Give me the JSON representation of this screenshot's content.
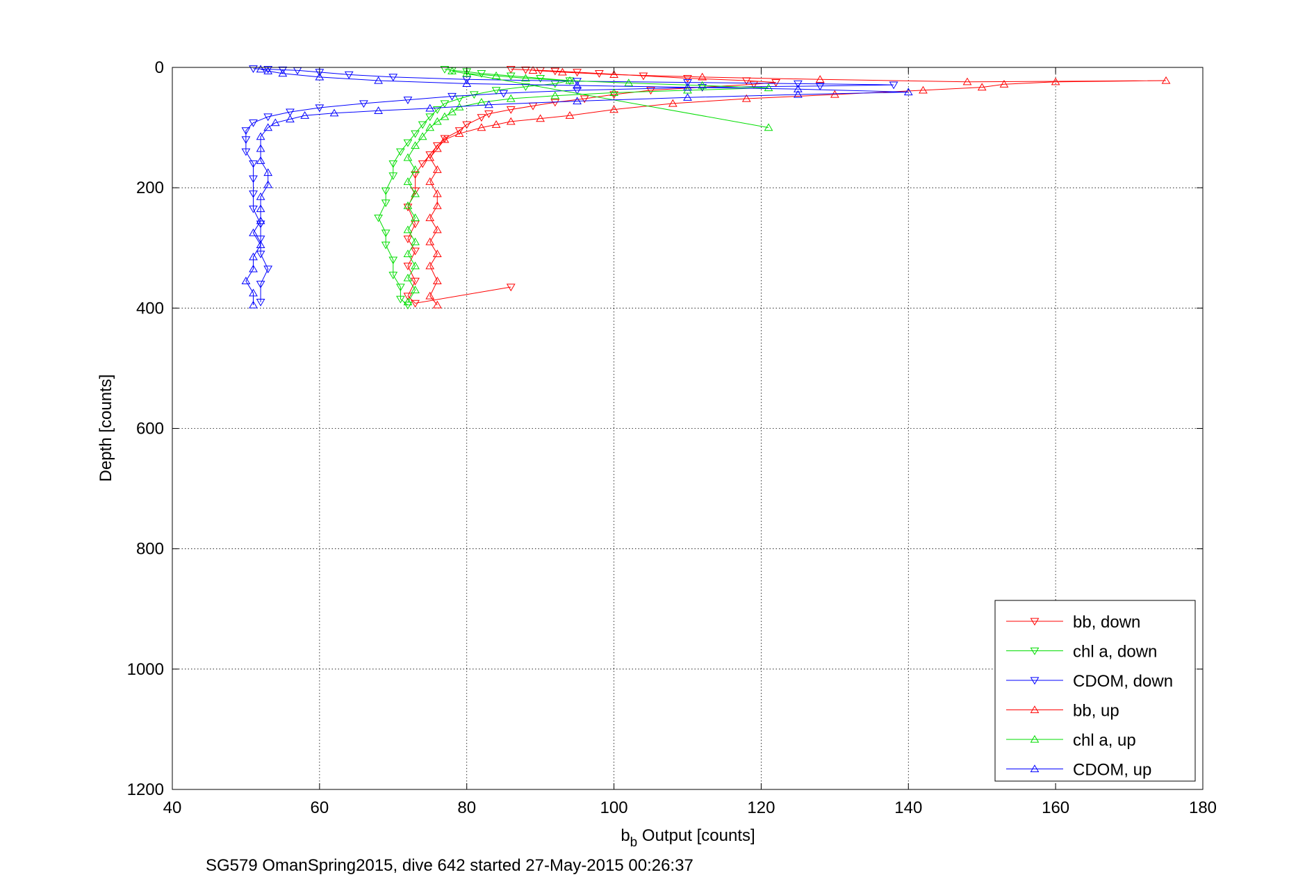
{
  "chart_data": {
    "type": "scatter",
    "title": "",
    "xlabel_main": "b",
    "xlabel_sub": "b",
    "xlabel_rest": " Output [counts]",
    "ylabel": "Depth [counts]",
    "caption": "SG579 OmanSpring2015, dive 642 started 27-May-2015 00:26:37",
    "xlim": [
      40,
      180
    ],
    "ylim": [
      0,
      1200
    ],
    "y_reversed": true,
    "xticks": [
      40,
      60,
      80,
      100,
      120,
      140,
      160,
      180
    ],
    "yticks": [
      0,
      200,
      400,
      600,
      800,
      1000,
      1200
    ],
    "grid": true,
    "legend_position": "bottom-right",
    "series": [
      {
        "name": "bb, down",
        "color": "#ff0000",
        "marker": "triangle-down",
        "cast": "down",
        "points": [
          [
            86,
            3
          ],
          [
            88,
            4
          ],
          [
            90,
            5
          ],
          [
            92,
            6
          ],
          [
            95,
            8
          ],
          [
            98,
            10
          ],
          [
            104,
            14
          ],
          [
            110,
            18
          ],
          [
            118,
            22
          ],
          [
            122,
            25
          ],
          [
            119,
            28
          ],
          [
            112,
            33
          ],
          [
            105,
            38
          ],
          [
            100,
            45
          ],
          [
            96,
            52
          ],
          [
            92,
            58
          ],
          [
            89,
            64
          ],
          [
            86,
            70
          ],
          [
            83,
            77
          ],
          [
            82,
            83
          ],
          [
            80,
            95
          ],
          [
            79,
            105
          ],
          [
            77,
            118
          ],
          [
            76,
            130
          ],
          [
            75,
            145
          ],
          [
            74,
            160
          ],
          [
            73,
            178
          ],
          [
            73,
            205
          ],
          [
            72,
            232
          ],
          [
            73,
            260
          ],
          [
            72,
            285
          ],
          [
            73,
            305
          ],
          [
            72,
            330
          ],
          [
            73,
            355
          ],
          [
            72,
            380
          ],
          [
            73,
            392
          ],
          [
            86,
            365
          ]
        ]
      },
      {
        "name": "chl a, down",
        "color": "#00dd00",
        "marker": "triangle-down",
        "cast": "down",
        "points": [
          [
            77,
            3
          ],
          [
            78,
            5
          ],
          [
            80,
            7
          ],
          [
            82,
            10
          ],
          [
            86,
            14
          ],
          [
            90,
            18
          ],
          [
            94,
            22
          ],
          [
            92,
            27
          ],
          [
            88,
            32
          ],
          [
            84,
            38
          ],
          [
            81,
            45
          ],
          [
            79,
            52
          ],
          [
            77,
            60
          ],
          [
            76,
            70
          ],
          [
            75,
            82
          ],
          [
            74,
            95
          ],
          [
            73,
            110
          ],
          [
            72,
            125
          ],
          [
            71,
            140
          ],
          [
            70,
            160
          ],
          [
            70,
            180
          ],
          [
            69,
            205
          ],
          [
            69,
            225
          ],
          [
            68,
            250
          ],
          [
            69,
            275
          ],
          [
            69,
            295
          ],
          [
            70,
            320
          ],
          [
            70,
            345
          ],
          [
            71,
            365
          ],
          [
            71,
            385
          ],
          [
            72,
            395
          ]
        ]
      },
      {
        "name": "CDOM, down",
        "color": "#0000ff",
        "marker": "triangle-down",
        "cast": "down",
        "points": [
          [
            51,
            2
          ],
          [
            53,
            3
          ],
          [
            55,
            4
          ],
          [
            57,
            5
          ],
          [
            60,
            8
          ],
          [
            64,
            12
          ],
          [
            70,
            16
          ],
          [
            80,
            20
          ],
          [
            95,
            23
          ],
          [
            110,
            25
          ],
          [
            125,
            27
          ],
          [
            138,
            29
          ],
          [
            128,
            31
          ],
          [
            112,
            33
          ],
          [
            95,
            38
          ],
          [
            85,
            43
          ],
          [
            78,
            48
          ],
          [
            72,
            54
          ],
          [
            66,
            60
          ],
          [
            60,
            67
          ],
          [
            56,
            74
          ],
          [
            53,
            82
          ],
          [
            51,
            92
          ],
          [
            50,
            105
          ],
          [
            50,
            120
          ],
          [
            50,
            140
          ],
          [
            51,
            160
          ],
          [
            51,
            185
          ],
          [
            51,
            210
          ],
          [
            51,
            235
          ],
          [
            52,
            260
          ],
          [
            52,
            285
          ],
          [
            52,
            310
          ],
          [
            53,
            335
          ],
          [
            52,
            360
          ],
          [
            52,
            390
          ]
        ]
      },
      {
        "name": "bb, up",
        "color": "#ff0000",
        "marker": "triangle-up",
        "cast": "up",
        "points": [
          [
            76,
            395
          ],
          [
            75,
            380
          ],
          [
            76,
            355
          ],
          [
            75,
            330
          ],
          [
            76,
            310
          ],
          [
            75,
            290
          ],
          [
            76,
            270
          ],
          [
            75,
            250
          ],
          [
            76,
            230
          ],
          [
            76,
            210
          ],
          [
            75,
            190
          ],
          [
            76,
            170
          ],
          [
            75,
            150
          ],
          [
            76,
            135
          ],
          [
            77,
            120
          ],
          [
            79,
            110
          ],
          [
            82,
            100
          ],
          [
            84,
            95
          ],
          [
            86,
            90
          ],
          [
            90,
            85
          ],
          [
            94,
            80
          ],
          [
            100,
            70
          ],
          [
            108,
            60
          ],
          [
            118,
            52
          ],
          [
            130,
            45
          ],
          [
            142,
            38
          ],
          [
            150,
            33
          ],
          [
            153,
            28
          ],
          [
            160,
            24
          ],
          [
            175,
            22
          ],
          [
            148,
            24
          ],
          [
            128,
            20
          ],
          [
            112,
            16
          ],
          [
            100,
            12
          ],
          [
            93,
            8
          ],
          [
            89,
            5
          ]
        ]
      },
      {
        "name": "chl a, up",
        "color": "#00dd00",
        "marker": "triangle-up",
        "cast": "up",
        "points": [
          [
            72,
            390
          ],
          [
            73,
            370
          ],
          [
            72,
            350
          ],
          [
            73,
            330
          ],
          [
            72,
            310
          ],
          [
            73,
            290
          ],
          [
            72,
            270
          ],
          [
            73,
            250
          ],
          [
            72,
            230
          ],
          [
            73,
            210
          ],
          [
            72,
            190
          ],
          [
            73,
            170
          ],
          [
            72,
            150
          ],
          [
            73,
            130
          ],
          [
            74,
            115
          ],
          [
            75,
            100
          ],
          [
            76,
            90
          ],
          [
            77,
            82
          ],
          [
            78,
            74
          ],
          [
            79,
            66
          ],
          [
            82,
            58
          ],
          [
            86,
            52
          ],
          [
            92,
            47
          ],
          [
            100,
            42
          ],
          [
            110,
            38
          ],
          [
            121,
            34
          ],
          [
            112,
            30
          ],
          [
            102,
            26
          ],
          [
            94,
            22
          ],
          [
            88,
            18
          ],
          [
            84,
            14
          ],
          [
            80,
            10
          ],
          [
            78,
            6
          ],
          [
            121,
            100
          ]
        ]
      },
      {
        "name": "CDOM, up",
        "color": "#0000ff",
        "marker": "triangle-up",
        "cast": "up",
        "points": [
          [
            51,
            395
          ],
          [
            51,
            375
          ],
          [
            50,
            355
          ],
          [
            51,
            335
          ],
          [
            51,
            315
          ],
          [
            52,
            295
          ],
          [
            51,
            275
          ],
          [
            52,
            255
          ],
          [
            52,
            235
          ],
          [
            52,
            215
          ],
          [
            53,
            195
          ],
          [
            53,
            175
          ],
          [
            52,
            155
          ],
          [
            52,
            135
          ],
          [
            52,
            115
          ],
          [
            53,
            100
          ],
          [
            54,
            92
          ],
          [
            56,
            86
          ],
          [
            58,
            80
          ],
          [
            62,
            76
          ],
          [
            68,
            72
          ],
          [
            75,
            68
          ],
          [
            83,
            62
          ],
          [
            95,
            56
          ],
          [
            110,
            50
          ],
          [
            125,
            45
          ],
          [
            140,
            41
          ],
          [
            125,
            36
          ],
          [
            110,
            33
          ],
          [
            95,
            30
          ],
          [
            80,
            27
          ],
          [
            68,
            22
          ],
          [
            60,
            16
          ],
          [
            55,
            10
          ],
          [
            53,
            6
          ],
          [
            52,
            3
          ]
        ]
      }
    ]
  }
}
